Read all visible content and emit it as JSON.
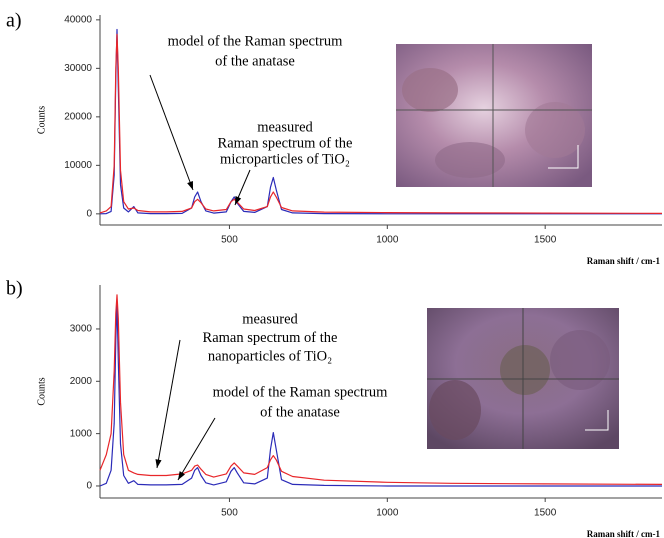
{
  "chart_data": [
    {
      "type": "line",
      "label": "a)",
      "y_label": "Counts",
      "x_label": "Raman shift / cm-1",
      "annotations": [
        {
          "lines": [
            "model of the Raman spectrum",
            "of the anatase"
          ]
        },
        {
          "lines": [
            "measured",
            "Raman spectrum of the",
            "microparticles of TiO₂"
          ]
        }
      ],
      "x": [
        90,
        110,
        125,
        135,
        140,
        144,
        148,
        155,
        165,
        180,
        197,
        210,
        250,
        300,
        350,
        380,
        390,
        399,
        410,
        425,
        450,
        490,
        505,
        515,
        525,
        545,
        580,
        620,
        630,
        639,
        648,
        665,
        700,
        800,
        1000,
        1200,
        1500,
        1870
      ],
      "series": [
        {
          "name": "model",
          "color": "#2b2bb8",
          "values": [
            0,
            50,
            500,
            8000,
            28000,
            38000,
            26000,
            6000,
            1200,
            400,
            1500,
            200,
            50,
            50,
            100,
            1200,
            3500,
            4500,
            2500,
            600,
            150,
            400,
            2500,
            3500,
            2200,
            500,
            300,
            1500,
            5500,
            7500,
            5000,
            900,
            200,
            50,
            0,
            0,
            0,
            0
          ]
        },
        {
          "name": "measured",
          "color": "#e8262a",
          "values": [
            200,
            600,
            1500,
            10000,
            30000,
            37000,
            30000,
            9000,
            2500,
            1000,
            1200,
            700,
            400,
            400,
            500,
            1200,
            2500,
            3000,
            2300,
            1000,
            600,
            900,
            2500,
            3000,
            2400,
            1000,
            700,
            1500,
            3500,
            4500,
            3500,
            1300,
            600,
            350,
            250,
            200,
            150,
            100
          ]
        }
      ],
      "xlim": [
        90,
        1870
      ],
      "ylim": [
        -2300,
        41000
      ],
      "xticks": [
        500,
        1000,
        1500
      ],
      "yticks": [
        0,
        10000,
        20000,
        30000,
        40000
      ]
    },
    {
      "type": "line",
      "label": "b)",
      "y_label": "Counts",
      "x_label": "Raman shift / cm-1",
      "annotations": [
        {
          "lines": [
            "measured",
            "Raman spectrum of the",
            "nanoparticles of TiO₂"
          ]
        },
        {
          "lines": [
            "model of the Raman spectrum",
            "of the anatase"
          ]
        }
      ],
      "x": [
        90,
        110,
        125,
        135,
        140,
        144,
        148,
        155,
        165,
        180,
        197,
        210,
        250,
        300,
        350,
        380,
        390,
        399,
        410,
        425,
        450,
        490,
        505,
        515,
        525,
        545,
        580,
        620,
        630,
        639,
        648,
        665,
        700,
        800,
        1000,
        1200,
        1500,
        1870
      ],
      "series": [
        {
          "name": "model",
          "color": "#2b2bb8",
          "values": [
            0,
            50,
            300,
            1200,
            2800,
            3500,
            2400,
            800,
            200,
            50,
            100,
            30,
            20,
            20,
            30,
            150,
            300,
            350,
            200,
            60,
            20,
            80,
            280,
            350,
            250,
            60,
            40,
            150,
            700,
            1020,
            700,
            120,
            30,
            10,
            0,
            0,
            0,
            0
          ]
        },
        {
          "name": "measured",
          "color": "#e8262a",
          "values": [
            300,
            600,
            1000,
            2200,
            3300,
            3650,
            3200,
            1600,
            600,
            300,
            250,
            220,
            200,
            200,
            230,
            300,
            380,
            400,
            320,
            220,
            170,
            230,
            380,
            440,
            380,
            250,
            220,
            350,
            500,
            580,
            500,
            280,
            180,
            110,
            70,
            50,
            40,
            30
          ]
        }
      ],
      "xlim": [
        90,
        1870
      ],
      "ylim": [
        -230,
        3840
      ],
      "xticks": [
        500,
        1000,
        1500
      ],
      "yticks": [
        0,
        1000,
        2000,
        3000
      ]
    }
  ]
}
